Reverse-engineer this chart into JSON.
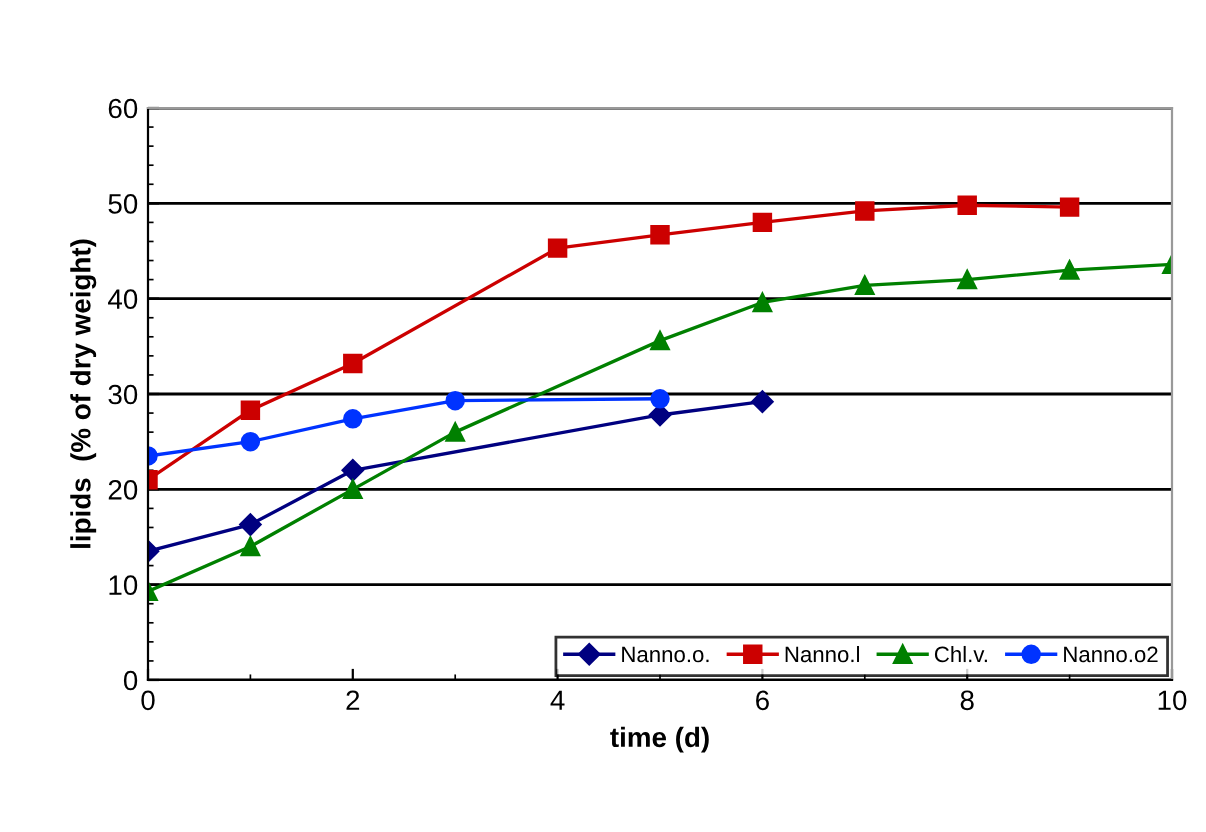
{
  "chart_data": {
    "type": "line",
    "xlabel": "time (d)",
    "ylabel": "lipids  (% of dry weight)",
    "xlim": [
      0,
      10
    ],
    "xticks": [
      0,
      2,
      4,
      6,
      8,
      10
    ],
    "ylim": [
      0,
      60
    ],
    "yticks": [
      0,
      10,
      20,
      30,
      40,
      50,
      60
    ],
    "grid": "y",
    "legend": "bottom right",
    "series": [
      {
        "name": "Nanno.o.",
        "color": "#000080",
        "marker": "diamond",
        "x": [
          0,
          1,
          2,
          5,
          6
        ],
        "values": [
          13.5,
          16.3,
          22,
          27.8,
          29.2
        ]
      },
      {
        "name": "Nanno.l",
        "color": "#cc0000",
        "marker": "square",
        "x": [
          0,
          1,
          2,
          4,
          5,
          6,
          7,
          8,
          9
        ],
        "values": [
          21,
          28.3,
          33.2,
          45.3,
          46.7,
          48,
          49.2,
          49.8,
          49.6
        ]
      },
      {
        "name": "Chl.v.",
        "color": "#008000",
        "marker": "triangle",
        "x": [
          0,
          1,
          2,
          3,
          5,
          6,
          7,
          8,
          9,
          10
        ],
        "values": [
          9.3,
          14,
          20,
          26,
          35.6,
          39.6,
          41.4,
          42,
          43,
          43.6
        ]
      },
      {
        "name": "Nanno.o2",
        "color": "#0033ff",
        "marker": "circle",
        "x": [
          0,
          1,
          2,
          3,
          5
        ],
        "values": [
          23.5,
          25,
          27.4,
          29.3,
          29.5
        ]
      }
    ]
  }
}
